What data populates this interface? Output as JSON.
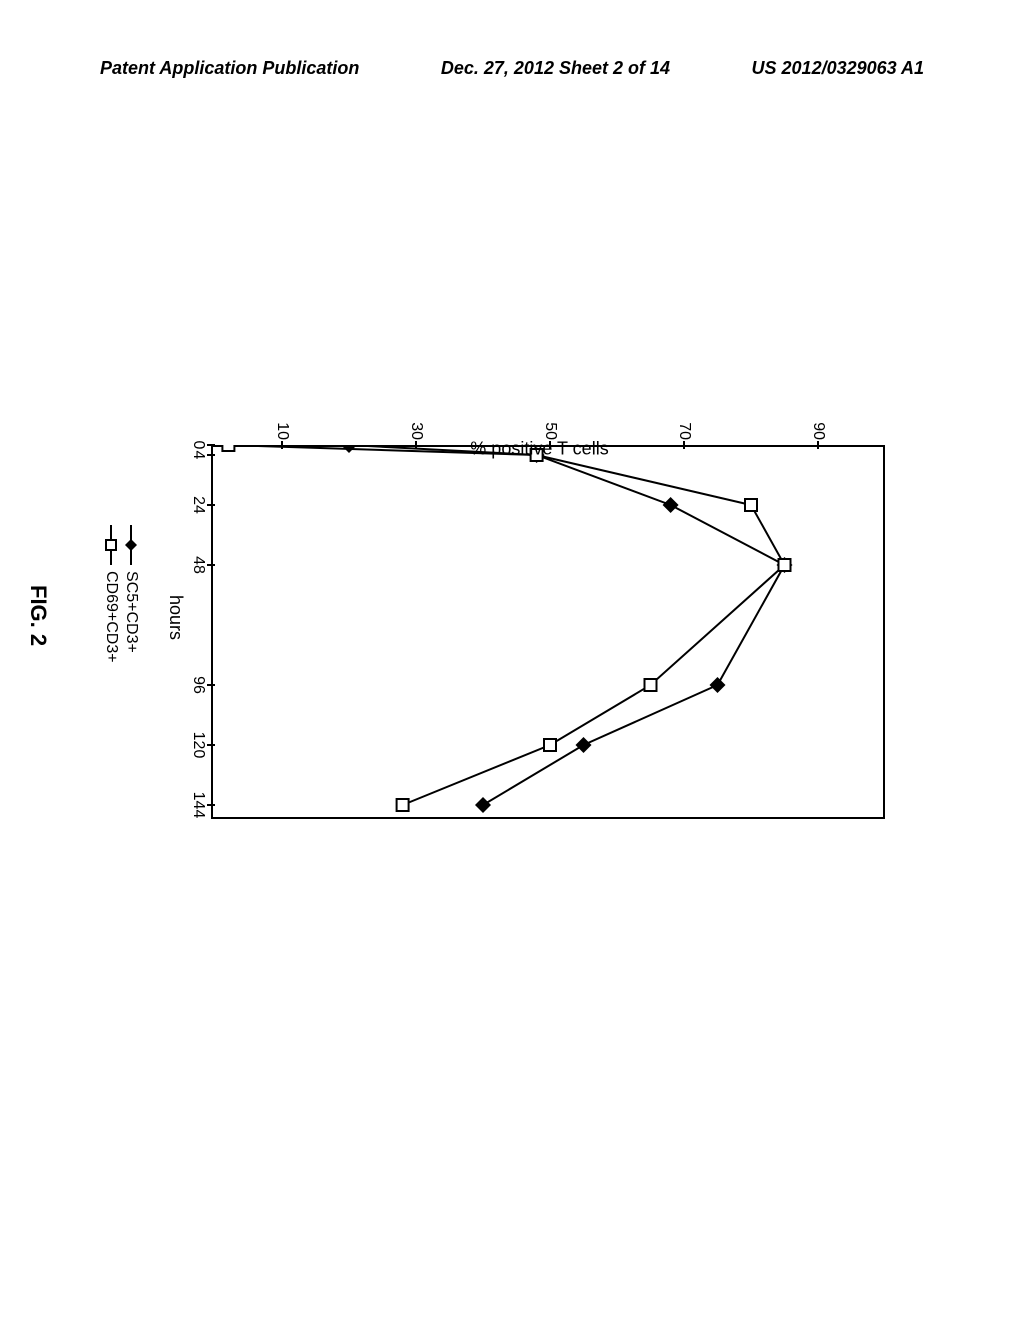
{
  "header": {
    "left": "Patent Application Publication",
    "center": "Dec. 27, 2012  Sheet 2 of 14",
    "right": "US 2012/0329063 A1"
  },
  "chart": {
    "type": "line",
    "ylabel": "% positive T cells",
    "xlabel": "hours",
    "ylim": [
      0,
      100
    ],
    "yticks": [
      10,
      30,
      50,
      70,
      90
    ],
    "xticks": [
      0,
      4,
      24,
      48,
      96,
      120,
      144
    ],
    "background_color": "#ffffff",
    "border_color": "#000000",
    "line_color": "#000000",
    "series": [
      {
        "name": "SC5+CD3+",
        "marker": "diamond-filled",
        "marker_color": "#000000",
        "x": [
          0,
          4,
          24,
          48,
          96,
          120,
          144
        ],
        "y": [
          20,
          48,
          68,
          85,
          75,
          55,
          40
        ]
      },
      {
        "name": "CD69+CD3+",
        "marker": "square-open",
        "marker_color": "#000000",
        "x": [
          0,
          4,
          24,
          48,
          96,
          120,
          144
        ],
        "y": [
          2,
          48,
          80,
          85,
          65,
          50,
          28
        ]
      }
    ],
    "figure_label": "FIG. 2"
  }
}
